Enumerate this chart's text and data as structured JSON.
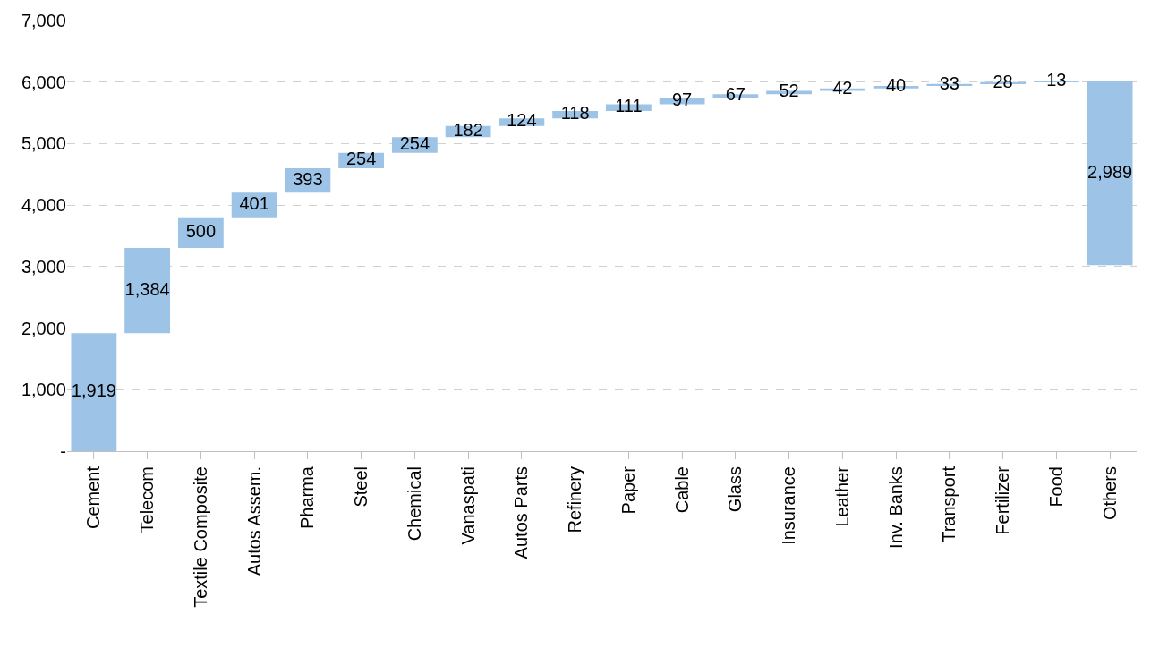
{
  "chart_data": {
    "type": "bar",
    "categories": [
      "Cement",
      "Telecom",
      "Textile Composite",
      "Autos Assem.",
      "Pharma",
      "Steel",
      "Chemical",
      "Vanaspati",
      "Autos Parts",
      "Refinery",
      "Paper",
      "Cable",
      "Glass",
      "Insurance",
      "Leather",
      "Inv. Banks",
      "Transport",
      "Fertilizer",
      "Food",
      "Others"
    ],
    "values": [
      1919,
      1384,
      500,
      401,
      393,
      254,
      254,
      182,
      124,
      118,
      111,
      97,
      67,
      52,
      42,
      40,
      33,
      28,
      13,
      2989
    ],
    "base": [
      0,
      1919,
      3303,
      3803,
      4204,
      4597,
      4851,
      5105,
      5287,
      5411,
      5529,
      5640,
      5737,
      5804,
      5856,
      5898,
      5938,
      5971,
      5999,
      3023
    ],
    "value_labels": [
      "1,919",
      "1,384",
      "500",
      "401",
      "393",
      "254",
      "254",
      "182",
      "124",
      "118",
      "111",
      "97",
      "67",
      "52",
      "42",
      "40",
      "33",
      "28",
      "13",
      "2,989"
    ],
    "color": "#9dc3e6",
    "ylim": [
      0,
      7000
    ],
    "yticks": [
      {
        "value": 0,
        "label": "-"
      },
      {
        "value": 1000,
        "label": "1,000"
      },
      {
        "value": 2000,
        "label": "2,000"
      },
      {
        "value": 3000,
        "label": "3,000"
      },
      {
        "value": 4000,
        "label": "4,000"
      },
      {
        "value": 5000,
        "label": "5,000"
      },
      {
        "value": 6000,
        "label": "6,000"
      },
      {
        "value": 7000,
        "label": "7,000"
      }
    ],
    "grid": "y"
  }
}
